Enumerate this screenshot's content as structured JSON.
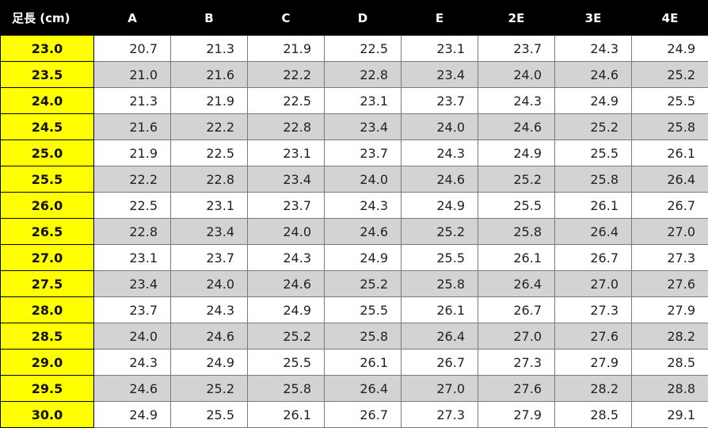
{
  "table": {
    "foot_length_header": "足長 (cm)",
    "width_headers": [
      "A",
      "B",
      "C",
      "D",
      "E",
      "2E",
      "3E",
      "4E"
    ],
    "rows": [
      {
        "foot": "23.0",
        "values": [
          "20.7",
          "21.3",
          "21.9",
          "22.5",
          "23.1",
          "23.7",
          "24.3",
          "24.9"
        ]
      },
      {
        "foot": "23.5",
        "values": [
          "21.0",
          "21.6",
          "22.2",
          "22.8",
          "23.4",
          "24.0",
          "24.6",
          "25.2"
        ]
      },
      {
        "foot": "24.0",
        "values": [
          "21.3",
          "21.9",
          "22.5",
          "23.1",
          "23.7",
          "24.3",
          "24.9",
          "25.5"
        ]
      },
      {
        "foot": "24.5",
        "values": [
          "21.6",
          "22.2",
          "22.8",
          "23.4",
          "24.0",
          "24.6",
          "25.2",
          "25.8"
        ]
      },
      {
        "foot": "25.0",
        "values": [
          "21.9",
          "22.5",
          "23.1",
          "23.7",
          "24.3",
          "24.9",
          "25.5",
          "26.1"
        ]
      },
      {
        "foot": "25.5",
        "values": [
          "22.2",
          "22.8",
          "23.4",
          "24.0",
          "24.6",
          "25.2",
          "25.8",
          "26.4"
        ]
      },
      {
        "foot": "26.0",
        "values": [
          "22.5",
          "23.1",
          "23.7",
          "24.3",
          "24.9",
          "25.5",
          "26.1",
          "26.7"
        ]
      },
      {
        "foot": "26.5",
        "values": [
          "22.8",
          "23.4",
          "24.0",
          "24.6",
          "25.2",
          "25.8",
          "26.4",
          "27.0"
        ]
      },
      {
        "foot": "27.0",
        "values": [
          "23.1",
          "23.7",
          "24.3",
          "24.9",
          "25.5",
          "26.1",
          "26.7",
          "27.3"
        ]
      },
      {
        "foot": "27.5",
        "values": [
          "23.4",
          "24.0",
          "24.6",
          "25.2",
          "25.8",
          "26.4",
          "27.0",
          "27.6"
        ]
      },
      {
        "foot": "28.0",
        "values": [
          "23.7",
          "24.3",
          "24.9",
          "25.5",
          "26.1",
          "26.7",
          "27.3",
          "27.9"
        ]
      },
      {
        "foot": "28.5",
        "values": [
          "24.0",
          "24.6",
          "25.2",
          "25.8",
          "26.4",
          "27.0",
          "27.6",
          "28.2"
        ]
      },
      {
        "foot": "29.0",
        "values": [
          "24.3",
          "24.9",
          "25.5",
          "26.1",
          "26.7",
          "27.3",
          "27.9",
          "28.5"
        ]
      },
      {
        "foot": "29.5",
        "values": [
          "24.6",
          "25.2",
          "25.8",
          "26.4",
          "27.0",
          "27.6",
          "28.2",
          "28.8"
        ]
      },
      {
        "foot": "30.0",
        "values": [
          "24.9",
          "25.5",
          "26.1",
          "26.7",
          "27.3",
          "27.9",
          "28.5",
          "29.1"
        ]
      }
    ]
  },
  "colors": {
    "header_bg": "#000000",
    "header_text": "#ffffff",
    "foot_column_bg": "#ffff00",
    "shaded_row_bg": "#d3d3d3",
    "plain_row_bg": "#ffffff"
  }
}
